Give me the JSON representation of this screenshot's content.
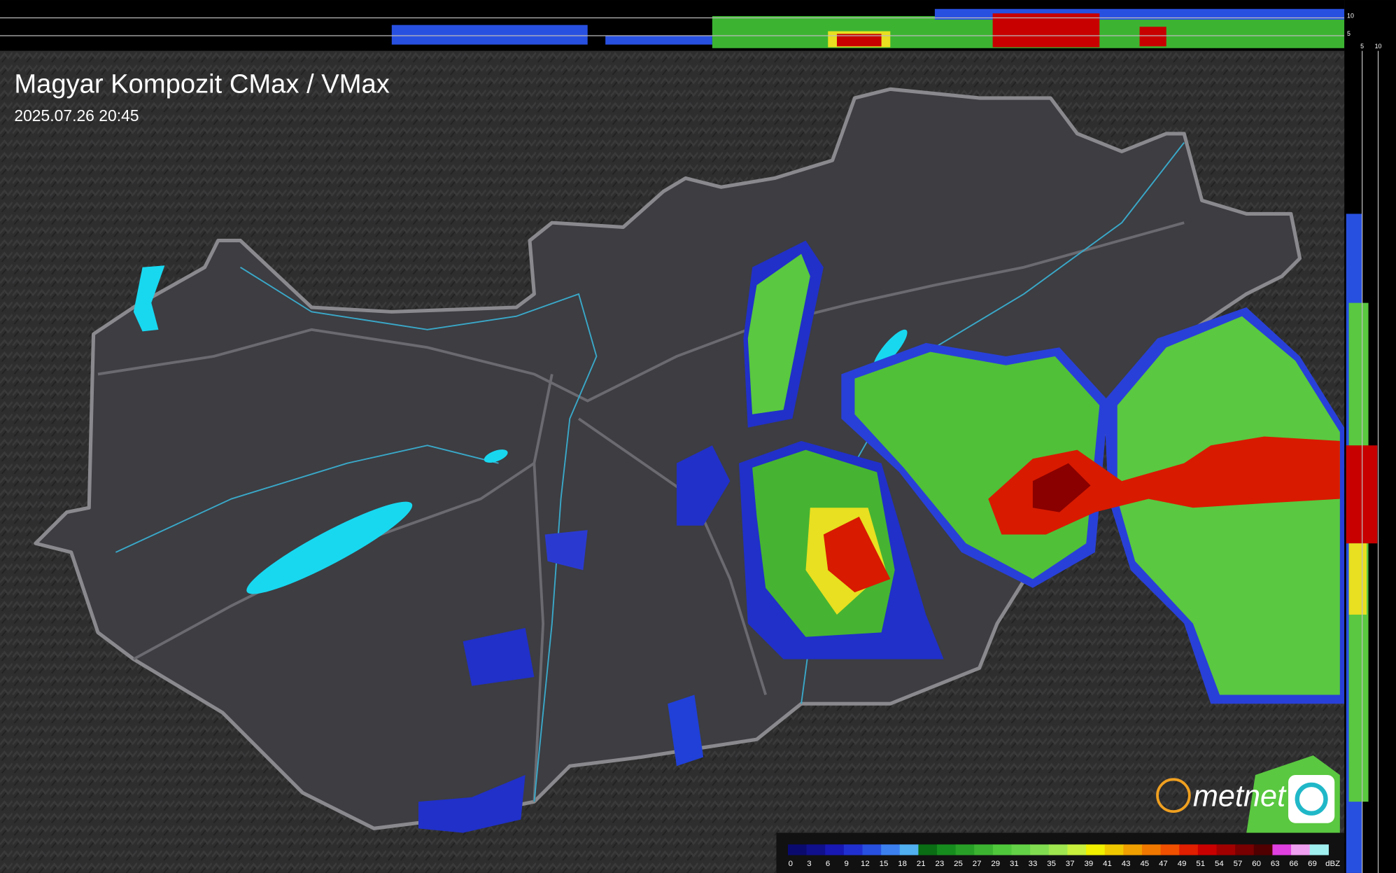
{
  "header": {
    "title": "Magyar Kompozit CMax / VMax",
    "timestamp": "2025.07.26 20:45"
  },
  "legend": {
    "unit": "dBZ",
    "stops": [
      0,
      3,
      6,
      9,
      12,
      15,
      18,
      21,
      23,
      25,
      27,
      29,
      31,
      33,
      35,
      37,
      39,
      41,
      43,
      45,
      47,
      49,
      51,
      54,
      57,
      60,
      63,
      66,
      69
    ],
    "colors": [
      "#0a0a6e",
      "#10108c",
      "#1818b4",
      "#2030d0",
      "#2850e0",
      "#3c80f0",
      "#50b0f0",
      "#0a6e14",
      "#168c1e",
      "#28a028",
      "#3cb432",
      "#50c83c",
      "#64d246",
      "#82dc50",
      "#a0e650",
      "#c8f03c",
      "#f0f000",
      "#f0c800",
      "#f0a000",
      "#f07800",
      "#f05000",
      "#e01e00",
      "#c80000",
      "#a00000",
      "#780000",
      "#500000",
      "#e040e0",
      "#f0a0f0",
      "#a0f0f0"
    ]
  },
  "logo": {
    "text": "metnet"
  },
  "profile_axes": {
    "top": [
      10,
      5
    ],
    "side": [
      5,
      10
    ]
  }
}
